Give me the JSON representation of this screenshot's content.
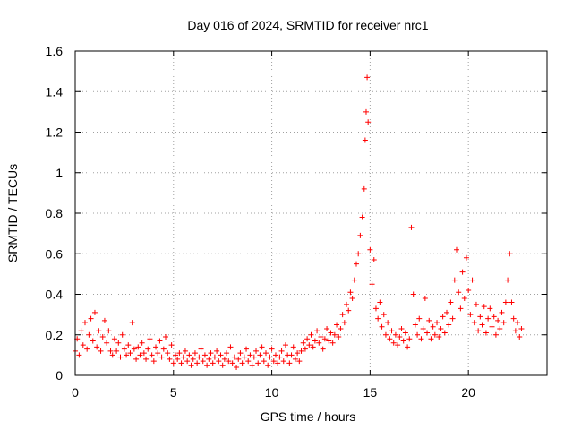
{
  "chart_data": {
    "type": "scatter",
    "title": "Day 016 of 2024, SRMTID for receiver nrc1",
    "xlabel": "GPS time / hours",
    "ylabel": "SRMTID / TECUs",
    "xlim": [
      0,
      24
    ],
    "ylim": [
      0,
      1.6
    ],
    "x_ticks": [
      "0",
      "5",
      "10",
      "15",
      "20"
    ],
    "y_ticks": [
      "0",
      "0.2",
      "0.4",
      "0.6",
      "0.8",
      "1",
      "1.2",
      "1.4",
      "1.6"
    ],
    "grid": true,
    "marker": "+",
    "marker_color": "#ff0000",
    "series": [
      {
        "name": "SRMTID",
        "points": [
          [
            0.0,
            0.12
          ],
          [
            0.1,
            0.18
          ],
          [
            0.2,
            0.1
          ],
          [
            0.3,
            0.22
          ],
          [
            0.4,
            0.15
          ],
          [
            0.5,
            0.26
          ],
          [
            0.6,
            0.13
          ],
          [
            0.7,
            0.2
          ],
          [
            0.8,
            0.28
          ],
          [
            0.9,
            0.17
          ],
          [
            1.0,
            0.31
          ],
          [
            1.1,
            0.14
          ],
          [
            1.2,
            0.22
          ],
          [
            1.3,
            0.12
          ],
          [
            1.4,
            0.19
          ],
          [
            1.5,
            0.27
          ],
          [
            1.6,
            0.16
          ],
          [
            1.7,
            0.22
          ],
          [
            1.8,
            0.12
          ],
          [
            1.9,
            0.1
          ],
          [
            2.0,
            0.18
          ],
          [
            2.1,
            0.12
          ],
          [
            2.2,
            0.16
          ],
          [
            2.3,
            0.09
          ],
          [
            2.4,
            0.2
          ],
          [
            2.5,
            0.13
          ],
          [
            2.6,
            0.1
          ],
          [
            2.7,
            0.15
          ],
          [
            2.8,
            0.11
          ],
          [
            2.9,
            0.26
          ],
          [
            3.0,
            0.13
          ],
          [
            3.1,
            0.08
          ],
          [
            3.2,
            0.14
          ],
          [
            3.3,
            0.1
          ],
          [
            3.4,
            0.16
          ],
          [
            3.5,
            0.11
          ],
          [
            3.6,
            0.08
          ],
          [
            3.7,
            0.13
          ],
          [
            3.8,
            0.18
          ],
          [
            3.9,
            0.1
          ],
          [
            4.0,
            0.07
          ],
          [
            4.1,
            0.14
          ],
          [
            4.2,
            0.11
          ],
          [
            4.3,
            0.17
          ],
          [
            4.4,
            0.09
          ],
          [
            4.5,
            0.13
          ],
          [
            4.6,
            0.19
          ],
          [
            4.7,
            0.11
          ],
          [
            4.8,
            0.08
          ],
          [
            4.9,
            0.15
          ],
          [
            5.0,
            0.06
          ],
          [
            5.1,
            0.1
          ],
          [
            5.2,
            0.08
          ],
          [
            5.3,
            0.11
          ],
          [
            5.4,
            0.06
          ],
          [
            5.5,
            0.09
          ],
          [
            5.6,
            0.12
          ],
          [
            5.7,
            0.07
          ],
          [
            5.8,
            0.1
          ],
          [
            5.9,
            0.05
          ],
          [
            6.0,
            0.08
          ],
          [
            6.1,
            0.11
          ],
          [
            6.2,
            0.06
          ],
          [
            6.3,
            0.09
          ],
          [
            6.4,
            0.13
          ],
          [
            6.5,
            0.07
          ],
          [
            6.6,
            0.1
          ],
          [
            6.7,
            0.05
          ],
          [
            6.8,
            0.08
          ],
          [
            6.9,
            0.11
          ],
          [
            7.0,
            0.06
          ],
          [
            7.1,
            0.09
          ],
          [
            7.2,
            0.12
          ],
          [
            7.3,
            0.07
          ],
          [
            7.4,
            0.1
          ],
          [
            7.5,
            0.05
          ],
          [
            7.6,
            0.08
          ],
          [
            7.7,
            0.11
          ],
          [
            7.8,
            0.07
          ],
          [
            7.9,
            0.14
          ],
          [
            8.0,
            0.06
          ],
          [
            8.1,
            0.09
          ],
          [
            8.2,
            0.04
          ],
          [
            8.3,
            0.08
          ],
          [
            8.4,
            0.11
          ],
          [
            8.5,
            0.06
          ],
          [
            8.6,
            0.09
          ],
          [
            8.7,
            0.13
          ],
          [
            8.8,
            0.07
          ],
          [
            8.9,
            0.1
          ],
          [
            9.0,
            0.05
          ],
          [
            9.1,
            0.09
          ],
          [
            9.2,
            0.12
          ],
          [
            9.3,
            0.06
          ],
          [
            9.4,
            0.1
          ],
          [
            9.5,
            0.14
          ],
          [
            9.6,
            0.07
          ],
          [
            9.7,
            0.11
          ],
          [
            9.8,
            0.05
          ],
          [
            9.9,
            0.09
          ],
          [
            10.0,
            0.13
          ],
          [
            10.1,
            0.07
          ],
          [
            10.2,
            0.1
          ],
          [
            10.3,
            0.06
          ],
          [
            10.4,
            0.09
          ],
          [
            10.5,
            0.12
          ],
          [
            10.6,
            0.07
          ],
          [
            10.7,
            0.15
          ],
          [
            10.8,
            0.1
          ],
          [
            10.9,
            0.06
          ],
          [
            11.0,
            0.1
          ],
          [
            11.1,
            0.14
          ],
          [
            11.2,
            0.08
          ],
          [
            11.3,
            0.11
          ],
          [
            11.4,
            0.07
          ],
          [
            11.5,
            0.12
          ],
          [
            11.6,
            0.16
          ],
          [
            11.7,
            0.13
          ],
          [
            11.8,
            0.18
          ],
          [
            11.9,
            0.15
          ],
          [
            12.0,
            0.2
          ],
          [
            12.1,
            0.14
          ],
          [
            12.2,
            0.17
          ],
          [
            12.3,
            0.22
          ],
          [
            12.4,
            0.16
          ],
          [
            12.5,
            0.19
          ],
          [
            12.6,
            0.13
          ],
          [
            12.7,
            0.18
          ],
          [
            12.8,
            0.23
          ],
          [
            12.9,
            0.17
          ],
          [
            13.0,
            0.21
          ],
          [
            13.1,
            0.16
          ],
          [
            13.2,
            0.2
          ],
          [
            13.3,
            0.25
          ],
          [
            13.4,
            0.19
          ],
          [
            13.5,
            0.23
          ],
          [
            13.6,
            0.3
          ],
          [
            13.7,
            0.26
          ],
          [
            13.8,
            0.35
          ],
          [
            13.9,
            0.32
          ],
          [
            14.0,
            0.41
          ],
          [
            14.1,
            0.38
          ],
          [
            14.2,
            0.47
          ],
          [
            14.3,
            0.55
          ],
          [
            14.4,
            0.6
          ],
          [
            14.5,
            0.69
          ],
          [
            14.6,
            0.78
          ],
          [
            14.7,
            0.92
          ],
          [
            14.75,
            1.16
          ],
          [
            14.8,
            1.3
          ],
          [
            14.85,
            1.47
          ],
          [
            14.9,
            1.25
          ],
          [
            15.0,
            0.62
          ],
          [
            15.1,
            0.45
          ],
          [
            15.2,
            0.57
          ],
          [
            15.3,
            0.33
          ],
          [
            15.4,
            0.28
          ],
          [
            15.5,
            0.36
          ],
          [
            15.6,
            0.24
          ],
          [
            15.7,
            0.3
          ],
          [
            15.8,
            0.2
          ],
          [
            15.9,
            0.26
          ],
          [
            16.0,
            0.18
          ],
          [
            16.1,
            0.22
          ],
          [
            16.2,
            0.16
          ],
          [
            16.3,
            0.2
          ],
          [
            16.4,
            0.15
          ],
          [
            16.5,
            0.19
          ],
          [
            16.6,
            0.23
          ],
          [
            16.7,
            0.17
          ],
          [
            16.8,
            0.21
          ],
          [
            16.9,
            0.14
          ],
          [
            17.0,
            0.18
          ],
          [
            17.1,
            0.73
          ],
          [
            17.2,
            0.4
          ],
          [
            17.3,
            0.25
          ],
          [
            17.4,
            0.2
          ],
          [
            17.5,
            0.28
          ],
          [
            17.6,
            0.18
          ],
          [
            17.7,
            0.23
          ],
          [
            17.8,
            0.38
          ],
          [
            17.9,
            0.21
          ],
          [
            18.0,
            0.27
          ],
          [
            18.1,
            0.18
          ],
          [
            18.2,
            0.24
          ],
          [
            18.3,
            0.2
          ],
          [
            18.4,
            0.26
          ],
          [
            18.5,
            0.19
          ],
          [
            18.6,
            0.23
          ],
          [
            18.7,
            0.29
          ],
          [
            18.8,
            0.21
          ],
          [
            18.9,
            0.31
          ],
          [
            19.0,
            0.25
          ],
          [
            19.1,
            0.36
          ],
          [
            19.2,
            0.28
          ],
          [
            19.3,
            0.47
          ],
          [
            19.4,
            0.62
          ],
          [
            19.5,
            0.41
          ],
          [
            19.6,
            0.33
          ],
          [
            19.7,
            0.51
          ],
          [
            19.8,
            0.38
          ],
          [
            19.9,
            0.58
          ],
          [
            20.0,
            0.42
          ],
          [
            20.1,
            0.3
          ],
          [
            20.2,
            0.47
          ],
          [
            20.3,
            0.26
          ],
          [
            20.4,
            0.35
          ],
          [
            20.5,
            0.22
          ],
          [
            20.6,
            0.29
          ],
          [
            20.7,
            0.25
          ],
          [
            20.8,
            0.34
          ],
          [
            20.9,
            0.21
          ],
          [
            21.0,
            0.28
          ],
          [
            21.1,
            0.33
          ],
          [
            21.2,
            0.24
          ],
          [
            21.3,
            0.29
          ],
          [
            21.4,
            0.2
          ],
          [
            21.5,
            0.27
          ],
          [
            21.6,
            0.23
          ],
          [
            21.7,
            0.31
          ],
          [
            21.8,
            0.26
          ],
          [
            21.9,
            0.36
          ],
          [
            22.0,
            0.47
          ],
          [
            22.1,
            0.6
          ],
          [
            22.2,
            0.36
          ],
          [
            22.3,
            0.28
          ],
          [
            22.4,
            0.22
          ],
          [
            22.5,
            0.26
          ],
          [
            22.6,
            0.19
          ],
          [
            22.7,
            0.23
          ]
        ]
      }
    ]
  }
}
